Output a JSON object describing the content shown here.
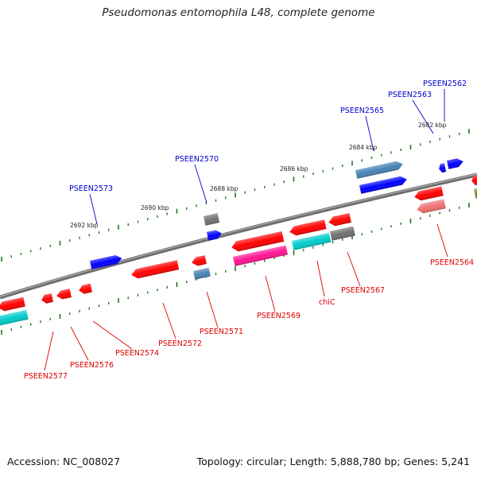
{
  "title": "Pseudomonas entomophila L48, complete genome",
  "footer": {
    "accession": "Accession: NC_008027",
    "summary": "Topology: circular; Length: 5,888,780 bp; Genes: 5,241"
  },
  "colors": {
    "backbone": "#808080",
    "tick": "#1e7a1e",
    "plus_label": "#0000cc",
    "minus_label": "#e00000",
    "gene_red": "#ff0000",
    "gene_blue": "#0000ff",
    "gene_steelblue": "#4682b4",
    "gene_gray": "#707070",
    "gene_cyan": "#00cccc",
    "gene_pink": "#ff1493",
    "gene_salmon": "#f07070",
    "gene_olive": "#6b8e23"
  },
  "kbp_labels": [
    "2682 kbp",
    "2684 kbp",
    "2686 kbp",
    "2688 kbp",
    "2690 kbp",
    "2692 kbp"
  ],
  "gene_labels_plus": [
    "PSEEN2562",
    "PSEEN2563",
    "PSEEN2565",
    "PSEEN2570",
    "PSEEN2573"
  ],
  "gene_labels_minus": [
    "PSEEN2564",
    "PSEEN2567",
    "chiC",
    "PSEEN2569",
    "PSEEN2571",
    "PSEEN2572",
    "PSEEN2574",
    "PSEEN2576",
    "PSEEN2577"
  ]
}
